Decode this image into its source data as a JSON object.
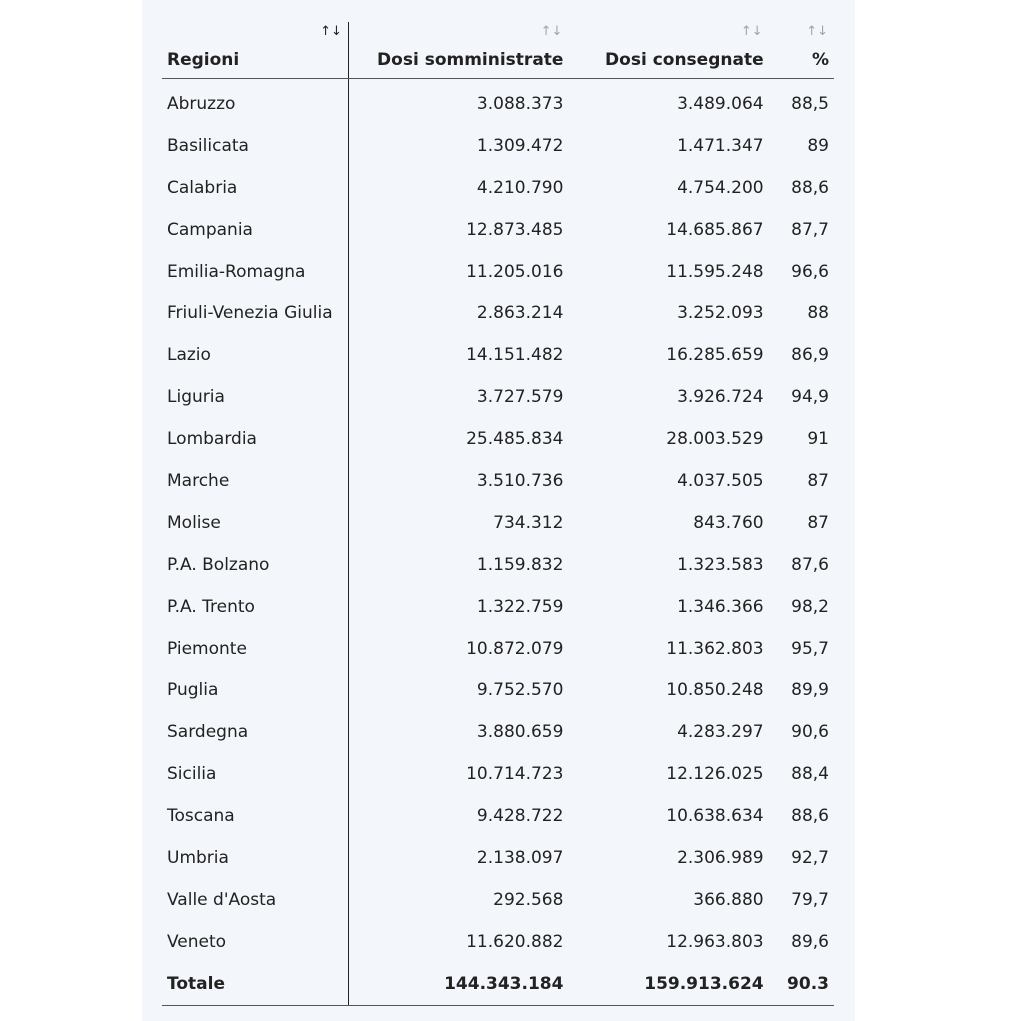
{
  "table": {
    "headers": {
      "region": "Regioni",
      "somministrate": "Dosi somministrate",
      "consegnate": "Dosi consegnate",
      "percent": "%"
    },
    "sort_icon_active": "↑↓",
    "sort_icon_inactive": "↑↓",
    "rows": [
      {
        "region": "Abruzzo",
        "somministrate": "3.088.373",
        "consegnate": "3.489.064",
        "percent": "88,5"
      },
      {
        "region": "Basilicata",
        "somministrate": "1.309.472",
        "consegnate": "1.471.347",
        "percent": "89"
      },
      {
        "region": "Calabria",
        "somministrate": "4.210.790",
        "consegnate": "4.754.200",
        "percent": "88,6"
      },
      {
        "region": "Campania",
        "somministrate": "12.873.485",
        "consegnate": "14.685.867",
        "percent": "87,7"
      },
      {
        "region": "Emilia-Romagna",
        "somministrate": "11.205.016",
        "consegnate": "11.595.248",
        "percent": "96,6"
      },
      {
        "region": "Friuli-Venezia Giulia",
        "somministrate": "2.863.214",
        "consegnate": "3.252.093",
        "percent": "88"
      },
      {
        "region": "Lazio",
        "somministrate": "14.151.482",
        "consegnate": "16.285.659",
        "percent": "86,9"
      },
      {
        "region": "Liguria",
        "somministrate": "3.727.579",
        "consegnate": "3.926.724",
        "percent": "94,9"
      },
      {
        "region": "Lombardia",
        "somministrate": "25.485.834",
        "consegnate": "28.003.529",
        "percent": "91"
      },
      {
        "region": "Marche",
        "somministrate": "3.510.736",
        "consegnate": "4.037.505",
        "percent": "87"
      },
      {
        "region": "Molise",
        "somministrate": "734.312",
        "consegnate": "843.760",
        "percent": "87"
      },
      {
        "region": "P.A. Bolzano",
        "somministrate": "1.159.832",
        "consegnate": "1.323.583",
        "percent": "87,6"
      },
      {
        "region": "P.A. Trento",
        "somministrate": "1.322.759",
        "consegnate": "1.346.366",
        "percent": "98,2"
      },
      {
        "region": "Piemonte",
        "somministrate": "10.872.079",
        "consegnate": "11.362.803",
        "percent": "95,7"
      },
      {
        "region": "Puglia",
        "somministrate": "9.752.570",
        "consegnate": "10.850.248",
        "percent": "89,9"
      },
      {
        "region": "Sardegna",
        "somministrate": "3.880.659",
        "consegnate": "4.283.297",
        "percent": "90,6"
      },
      {
        "region": "Sicilia",
        "somministrate": "10.714.723",
        "consegnate": "12.126.025",
        "percent": "88,4"
      },
      {
        "region": "Toscana",
        "somministrate": "9.428.722",
        "consegnate": "10.638.634",
        "percent": "88,6"
      },
      {
        "region": "Umbria",
        "somministrate": "2.138.097",
        "consegnate": "2.306.989",
        "percent": "92,7"
      },
      {
        "region": "Valle d'Aosta",
        "somministrate": "292.568",
        "consegnate": "366.880",
        "percent": "79,7"
      },
      {
        "region": "Veneto",
        "somministrate": "11.620.882",
        "consegnate": "12.963.803",
        "percent": "89,6"
      }
    ],
    "total": {
      "region": "Totale",
      "somministrate": "144.343.184",
      "consegnate": "159.913.624",
      "percent": "90.3"
    }
  }
}
